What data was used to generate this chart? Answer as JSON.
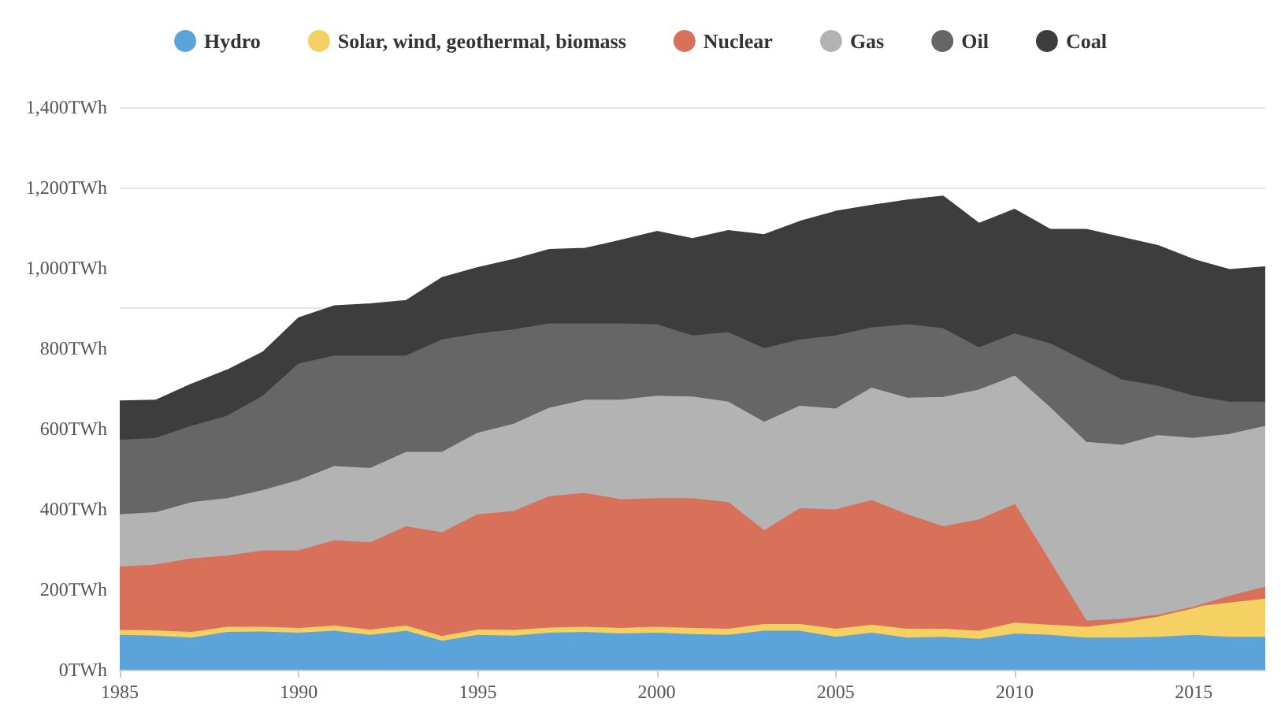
{
  "chart_data": {
    "type": "area",
    "stacked": true,
    "legend": "top",
    "grid": "y",
    "marker": "none",
    "x": [
      1985,
      1986,
      1987,
      1988,
      1989,
      1990,
      1991,
      1992,
      1993,
      1994,
      1995,
      1996,
      1997,
      1998,
      1999,
      2000,
      2001,
      2002,
      2003,
      2004,
      2005,
      2006,
      2007,
      2008,
      2009,
      2010,
      2011,
      2012,
      2013,
      2014,
      2015,
      2016,
      2017
    ],
    "xlim": [
      1985,
      2017
    ],
    "xticks": [
      1985,
      1990,
      1995,
      2000,
      2005,
      2010,
      2015
    ],
    "ylim": [
      0,
      1400
    ],
    "yticks": [
      {
        "value": 0,
        "label": "0TWh"
      },
      {
        "value": 200,
        "label": "200TWh"
      },
      {
        "value": 400,
        "label": "400TWh"
      },
      {
        "value": 600,
        "label": "600TWh"
      },
      {
        "value": 800,
        "label": "800TWh"
      },
      {
        "value": 1000,
        "label": "1,000TWh"
      },
      {
        "value": 1200,
        "label": "1,200TWh"
      },
      {
        "value": 1400,
        "label": "1,400TWh"
      }
    ],
    "series": [
      {
        "name": "Hydro",
        "color": "#5ba4db",
        "values": [
          85,
          83,
          78,
          92,
          93,
          90,
          95,
          85,
          95,
          70,
          85,
          83,
          90,
          92,
          88,
          90,
          87,
          85,
          95,
          95,
          80,
          90,
          78,
          80,
          75,
          88,
          85,
          78,
          78,
          80,
          85,
          80,
          80
        ]
      },
      {
        "name": "Solar, wind, geothermal, biomass",
        "color": "#f5d062",
        "values": [
          12,
          13,
          14,
          13,
          12,
          12,
          13,
          13,
          13,
          12,
          13,
          14,
          13,
          13,
          14,
          15,
          15,
          15,
          17,
          17,
          20,
          20,
          22,
          20,
          20,
          27,
          25,
          27,
          37,
          50,
          70,
          85,
          95
        ]
      },
      {
        "name": "Nuclear",
        "color": "#d9705a",
        "values": [
          158,
          164,
          183,
          177,
          190,
          193,
          212,
          217,
          247,
          258,
          287,
          296,
          327,
          333,
          320,
          320,
          323,
          315,
          233,
          288,
          297,
          310,
          285,
          255,
          277,
          295,
          155,
          15,
          10,
          5,
          0,
          17,
          30
        ]
      },
      {
        "name": "Gas",
        "color": "#b3b3b3",
        "values": [
          130,
          130,
          140,
          143,
          150,
          175,
          185,
          185,
          185,
          200,
          203,
          217,
          220,
          232,
          248,
          255,
          253,
          250,
          270,
          255,
          251,
          280,
          290,
          322,
          323,
          320,
          385,
          445,
          433,
          447,
          420,
          403,
          400
        ]
      },
      {
        "name": "Oil",
        "color": "#666666",
        "values": [
          185,
          185,
          190,
          205,
          235,
          290,
          275,
          280,
          240,
          280,
          247,
          235,
          210,
          190,
          190,
          178,
          152,
          173,
          183,
          165,
          182,
          150,
          183,
          171,
          105,
          105,
          160,
          200,
          162,
          123,
          105,
          80,
          60
        ]
      },
      {
        "name": "Coal",
        "color": "#3d3d3d",
        "values": [
          98,
          95,
          105,
          115,
          110,
          115,
          125,
          130,
          138,
          155,
          165,
          175,
          185,
          188,
          208,
          232,
          242,
          254,
          284,
          295,
          310,
          305,
          310,
          330,
          310,
          310,
          285,
          330,
          355,
          350,
          340,
          330,
          337
        ]
      }
    ]
  }
}
